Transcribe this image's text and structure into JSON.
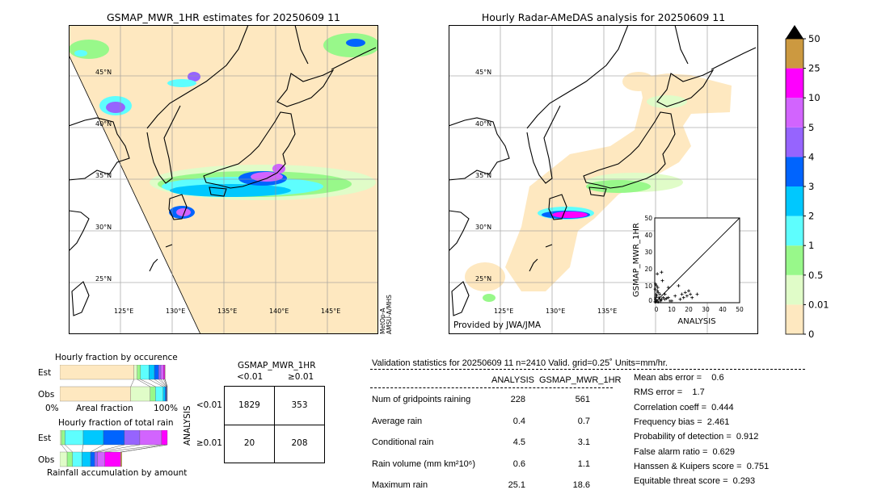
{
  "left_map": {
    "title": "GSMAP_MWR_1HR estimates for 20250609 11",
    "sensor_label_1": "MetOp-A",
    "sensor_label_2": "AMSU-A/MHS"
  },
  "right_map": {
    "title": "Hourly Radar-AMeDAS analysis for 20250609 11",
    "credit": "Provided by JWA/JMA"
  },
  "lat_labels": [
    "45°N",
    "40°N",
    "35°N",
    "30°N",
    "25°N"
  ],
  "lon_labels": [
    "125°E",
    "130°E",
    "135°E",
    "140°E",
    "145°E"
  ],
  "colorbar": {
    "ticks": [
      "0",
      "0.01",
      "0.5",
      "1",
      "2",
      "3",
      "4",
      "5",
      "10",
      "25",
      "50"
    ],
    "colors": [
      "#fee8c0",
      "#e0fcc8",
      "#98f88a",
      "#5efefe",
      "#00c8fe",
      "#0064fe",
      "#9664fe",
      "#d264fe",
      "#fe00fe",
      "#cc9940"
    ],
    "extend_color": "#000000"
  },
  "chart_data": {
    "type": "scatter",
    "xlabel": "ANALYSIS",
    "ylabel": "GSMAP_MWR_1HR",
    "xlim": [
      0,
      50
    ],
    "ylim": [
      0,
      50
    ],
    "ticks": [
      "0",
      "10",
      "20",
      "30",
      "40",
      "50"
    ],
    "points": [
      [
        0.5,
        11
      ],
      [
        1,
        10
      ],
      [
        0.3,
        8
      ],
      [
        1.5,
        7
      ],
      [
        2,
        6
      ],
      [
        0.8,
        5
      ],
      [
        1.2,
        4
      ],
      [
        2.5,
        3
      ],
      [
        3,
        2
      ],
      [
        0.5,
        2
      ],
      [
        1,
        1
      ],
      [
        2,
        0.5
      ],
      [
        3.5,
        1
      ],
      [
        4,
        2
      ],
      [
        5,
        3
      ],
      [
        6,
        2
      ],
      [
        7,
        2.5
      ],
      [
        8,
        3
      ],
      [
        9,
        1
      ],
      [
        1.5,
        17
      ],
      [
        4,
        18
      ],
      [
        4.5,
        13
      ],
      [
        8,
        9
      ],
      [
        6,
        5
      ],
      [
        10,
        1
      ],
      [
        12,
        4
      ],
      [
        14,
        10
      ],
      [
        15,
        2
      ],
      [
        16,
        5
      ],
      [
        17,
        3
      ],
      [
        18,
        6
      ],
      [
        19,
        4
      ],
      [
        20,
        7
      ],
      [
        21,
        5
      ],
      [
        22,
        3
      ],
      [
        25,
        5
      ],
      [
        3,
        5
      ],
      [
        0.2,
        0.5
      ],
      [
        0.6,
        3
      ],
      [
        1.8,
        9
      ]
    ]
  },
  "occurrence": {
    "title": "Hourly fraction by occurence",
    "rows": [
      {
        "label": "Est",
        "fractions": [
          0.69,
          0.03,
          0.03,
          0.08,
          0.05,
          0.04,
          0.02,
          0.025,
          0.012,
          0.003
        ]
      },
      {
        "label": "Obs",
        "fractions": [
          0.66,
          0.18,
          0.05,
          0.07,
          0.02,
          0.01,
          0.004,
          0.003,
          0.002,
          0.001
        ]
      }
    ],
    "axis_left": "0%",
    "axis_label": "Areal fraction",
    "axis_right": "100%"
  },
  "total_rain": {
    "title": "Hourly fraction of total rain",
    "rows": [
      {
        "label": "Est",
        "fractions": [
          0.015,
          0.033,
          0.17,
          0.188,
          0.195,
          0.143,
          0.203,
          0.053,
          0
        ]
      },
      {
        "label": "Obs",
        "fractions": [
          0.068,
          0.05,
          0.088,
          0.08,
          0.038,
          0.026,
          0.07,
          0.145,
          0.011
        ]
      }
    ],
    "footer": "Rainfall accumulation by amount"
  },
  "contingency": {
    "title": "GSMAP_MWR_1HR",
    "col_labels": [
      "<0.01",
      "≥0.01"
    ],
    "row_axis": "ANALYSIS",
    "row_labels": [
      "<0.01",
      "≥0.01"
    ],
    "cells": [
      [
        "1829",
        "353"
      ],
      [
        "20",
        "208"
      ]
    ]
  },
  "validation": {
    "header": "Validation statistics for 20250609 11  n=2410 Valid. grid=0.25˚ Units=mm/hr.",
    "columns": [
      "ANALYSIS",
      "GSMAP_MWR_1HR"
    ],
    "rows": [
      {
        "label": "Num of gridpoints raining",
        "analysis": "228",
        "gsmap": "561"
      },
      {
        "label": "Average rain",
        "analysis": "0.4",
        "gsmap": "0.7"
      },
      {
        "label": "Conditional rain",
        "analysis": "4.5",
        "gsmap": "3.1"
      },
      {
        "label": "Rain volume (mm km²10⁶)",
        "analysis": "0.6",
        "gsmap": "1.1"
      },
      {
        "label": "Maximum rain",
        "analysis": "25.1",
        "gsmap": "18.6"
      }
    ],
    "scores": [
      "Mean abs error =    0.6",
      "RMS error =    1.7",
      "Correlation coeff =  0.444",
      "Frequency bias =  2.461",
      "Probability of detection =  0.912",
      "False alarm ratio =  0.629",
      "Hanssen & Kuipers score =  0.751",
      "Equitable threat score =  0.293"
    ]
  }
}
